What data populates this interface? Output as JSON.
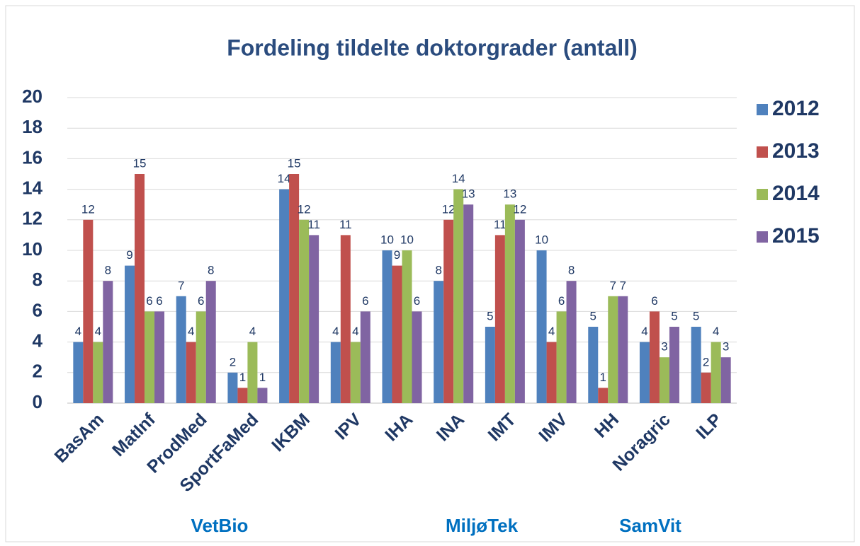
{
  "chart_data": {
    "type": "bar",
    "title": "Fordeling tildelte doktorgrader (antall)",
    "categories": [
      "BasAm",
      "MatInf",
      "ProdMed",
      "SportFaMed",
      "IKBM",
      "IPV",
      "IHA",
      "INA",
      "IMT",
      "IMV",
      "HH",
      "Noragric",
      "ILP"
    ],
    "series": [
      {
        "name": "2012",
        "color": "#4f81bd",
        "values": [
          4,
          9,
          7,
          2,
          14,
          4,
          10,
          8,
          5,
          10,
          5,
          4,
          5
        ]
      },
      {
        "name": "2013",
        "color": "#c0504d",
        "values": [
          12,
          15,
          4,
          1,
          15,
          11,
          9,
          12,
          11,
          4,
          1,
          6,
          2
        ]
      },
      {
        "name": "2014",
        "color": "#9bbb59",
        "values": [
          4,
          6,
          6,
          4,
          12,
          4,
          10,
          14,
          13,
          6,
          7,
          3,
          4
        ]
      },
      {
        "name": "2015",
        "color": "#8064a2",
        "values": [
          8,
          6,
          8,
          1,
          11,
          6,
          6,
          13,
          12,
          8,
          7,
          5,
          3
        ]
      }
    ],
    "annotations": [
      "VetBio",
      "MiljøTek",
      "SamVit"
    ],
    "ylim": [
      0,
      20
    ],
    "yticks": [
      0,
      2,
      4,
      6,
      8,
      10,
      12,
      14,
      16,
      18,
      20
    ],
    "grid": true,
    "legend": "right"
  }
}
